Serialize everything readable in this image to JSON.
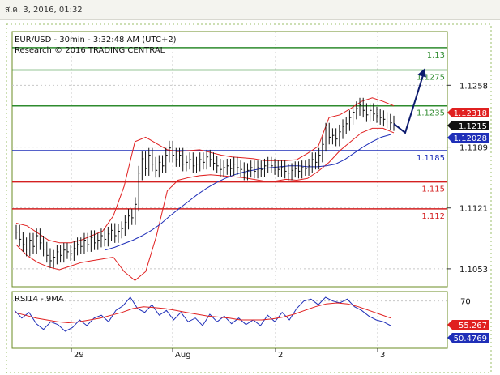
{
  "timestamp": "ส.ค. 3, 2016, 01:32",
  "chart_data": {
    "type": "line",
    "title": "EUR/USD - 30min - 3:32:48 AM (UTC+2)",
    "subtitle": "Research © 2016 TRADING CENTRAL",
    "price_axis": {
      "ticks": [
        1.1258,
        1.1189,
        1.1121,
        1.1053
      ],
      "tick_labels": [
        "1.1258",
        "1.1189",
        "1.1121",
        "1.1053"
      ],
      "range": [
        1.1033,
        1.1318
      ]
    },
    "x_tick_labels": [
      "29",
      "Aug",
      "2",
      "3"
    ],
    "levels": [
      {
        "value": 1.13,
        "label": "1.13",
        "color": "#2e8b2e",
        "kind": "resistance"
      },
      {
        "value": 1.1275,
        "label": "1.1275",
        "color": "#2e8b2e",
        "kind": "resistance"
      },
      {
        "value": 1.1235,
        "label": "1.1235",
        "color": "#2e8b2e",
        "kind": "resistance"
      },
      {
        "value": 1.1185,
        "label": "1.1185",
        "color": "#1f2fb8",
        "kind": "pivot"
      },
      {
        "value": 1.115,
        "label": "1.115",
        "color": "#d42020",
        "kind": "support"
      },
      {
        "value": 1.112,
        "label": "1.112",
        "color": "#d42020",
        "kind": "support"
      }
    ],
    "price_badges": [
      {
        "label": "1.12318",
        "value": 1.12318,
        "color": "#e02020"
      },
      {
        "label": "1.1215",
        "value": 1.1215,
        "color": "#111111"
      },
      {
        "label": "1.12028",
        "value": 1.12028,
        "color": "#1f2fb8"
      }
    ],
    "price_series": [
      1.1094,
      1.1086,
      1.108,
      1.1075,
      1.1085,
      1.1078,
      1.109,
      1.1082,
      1.1075,
      1.1068,
      1.1062,
      1.1066,
      1.1072,
      1.1068,
      1.1074,
      1.1072,
      1.107,
      1.1076,
      1.108,
      1.1078,
      1.1085,
      1.108,
      1.1088,
      1.1082,
      1.1085,
      1.109,
      1.1086,
      1.1092,
      1.1096,
      1.109,
      1.1095,
      1.1098,
      1.1105,
      1.1112,
      1.111,
      1.1125,
      1.116,
      1.1176,
      1.1165,
      1.118,
      1.117,
      1.1163,
      1.1172,
      1.1168,
      1.118,
      1.1188,
      1.118,
      1.1175,
      1.118,
      1.117,
      1.1172,
      1.1175,
      1.1168,
      1.117,
      1.1175,
      1.1172,
      1.1178,
      1.1175,
      1.1171,
      1.1168,
      1.1164,
      1.1166,
      1.1168,
      1.1165,
      1.117,
      1.1166,
      1.1164,
      1.116,
      1.1163,
      1.1166,
      1.1162,
      1.1166,
      1.1164,
      1.1168,
      1.117,
      1.1168,
      1.1166,
      1.1164,
      1.1166,
      1.1162,
      1.116,
      1.1163,
      1.1165,
      1.1162,
      1.1166,
      1.1165,
      1.1168,
      1.1175,
      1.1172,
      1.118,
      1.1192,
      1.1208,
      1.12,
      1.1202,
      1.1198,
      1.1206,
      1.1212,
      1.1215,
      1.1222,
      1.1228,
      1.1232,
      1.1236,
      1.123,
      1.1225,
      1.123,
      1.1226,
      1.1224,
      1.1222,
      1.122,
      1.1218,
      1.1216,
      1.1215
    ],
    "moving_average": [
      1.1074,
      1.1077,
      1.1081,
      1.1085,
      1.109,
      1.1096,
      1.1103,
      1.1112,
      1.112,
      1.1128,
      1.1136,
      1.1143,
      1.1149,
      1.1154,
      1.1158,
      1.1161,
      1.1163,
      1.1165,
      1.1166,
      1.1167,
      1.1168,
      1.1168,
      1.1167,
      1.1167,
      1.1168,
      1.117,
      1.1175,
      1.1182,
      1.1189,
      1.1195,
      1.12,
      1.1203
    ],
    "bollinger_upper": [
      1.1104,
      1.1101,
      1.1093,
      1.1085,
      1.1082,
      1.1082,
      1.1085,
      1.109,
      1.1095,
      1.1112,
      1.1145,
      1.1195,
      1.12,
      1.1193,
      1.1186,
      1.1184,
      1.1185,
      1.1186,
      1.1183,
      1.118,
      1.1178,
      1.1177,
      1.1176,
      1.1174,
      1.1174,
      1.1174,
      1.1175,
      1.1182,
      1.119,
      1.1222,
      1.1225,
      1.1232,
      1.124,
      1.1244,
      1.124,
      1.1235
    ],
    "bollinger_lower": [
      1.108,
      1.1068,
      1.106,
      1.1055,
      1.1052,
      1.1056,
      1.106,
      1.1062,
      1.1064,
      1.1066,
      1.105,
      1.104,
      1.105,
      1.109,
      1.114,
      1.1152,
      1.1155,
      1.1157,
      1.1158,
      1.1157,
      1.1156,
      1.1155,
      1.1153,
      1.1151,
      1.1151,
      1.1153,
      1.1152,
      1.1154,
      1.1162,
      1.1172,
      1.1185,
      1.1195,
      1.1205,
      1.121,
      1.121,
      1.1205
    ],
    "forecast_path": [
      [
        1.1215,
        1.1205
      ],
      [
        1.1205,
        1.1275
      ]
    ],
    "rsi": {
      "title": "RSI14 - 9MA",
      "tick_labels": [
        "70"
      ],
      "range": [
        20,
        80
      ],
      "rsi_series": [
        60,
        52,
        58,
        46,
        40,
        48,
        45,
        38,
        42,
        50,
        44,
        52,
        55,
        48,
        60,
        65,
        74,
        62,
        58,
        66,
        55,
        60,
        50,
        58,
        48,
        52,
        44,
        56,
        48,
        54,
        46,
        52,
        45,
        50,
        44,
        55,
        48,
        58,
        50,
        62,
        70,
        72,
        66,
        74,
        70,
        68,
        72,
        64,
        60,
        54,
        50,
        48,
        44
      ],
      "ma_series": [
        58,
        55,
        52,
        50,
        48,
        47,
        48,
        50,
        52,
        55,
        58,
        62,
        64,
        63,
        62,
        60,
        58,
        56,
        54,
        53,
        52,
        50,
        50,
        50,
        51,
        53,
        56,
        60,
        64,
        67,
        68,
        67,
        64,
        60,
        56,
        52
      ],
      "badges": [
        {
          "label": "55.267",
          "value": 55.267,
          "color": "#e02020"
        },
        {
          "label": "50.4769",
          "value": 50.4769,
          "color": "#1f2fb8"
        }
      ]
    }
  }
}
